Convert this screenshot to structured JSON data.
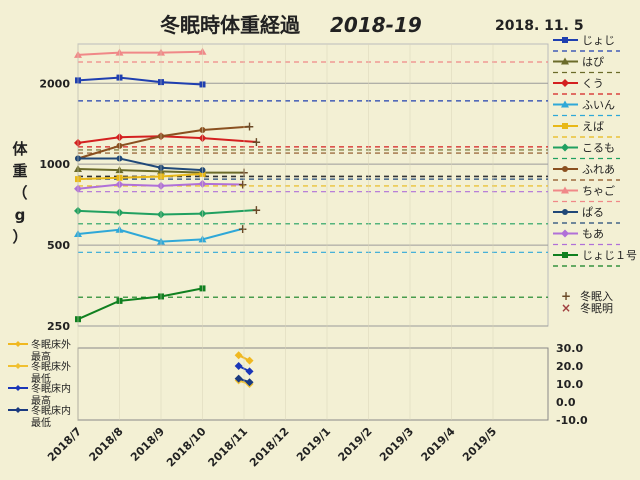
{
  "title": "冬眠時体重経過",
  "season": "2018-19",
  "date": "2018. 11. 5",
  "y_label_chars": [
    "体",
    "重",
    "（",
    "g",
    "）"
  ],
  "chart_data": [
    {
      "type": "line",
      "panel": "weight",
      "y_scale": "log",
      "ylim": [
        250,
        2800
      ],
      "y_ticks": [
        250,
        500,
        1000,
        2000
      ],
      "x_ticks": [
        "2018/7",
        "2018/8",
        "2018/9",
        "2018/10",
        "2018/11",
        "2018/12",
        "2019/1",
        "2019/2",
        "2019/3",
        "2019/4",
        "2019/5"
      ],
      "series": [
        {
          "name": "じょじ",
          "color": "#1f3fb0",
          "marker": "square",
          "x": [
            "2018/7/1",
            "2018/8/1",
            "2018/9/1",
            "2018/10/1"
          ],
          "values": [
            2050,
            2100,
            2020,
            1980
          ],
          "ref": 1720
        },
        {
          "name": "はぴ",
          "color": "#6b6b2a",
          "marker": "triangle",
          "x": [
            "2018/7/1",
            "2018/8/1",
            "2018/9/1",
            "2018/10/1",
            "2018/11/1"
          ],
          "values": [
            960,
            950,
            940,
            930,
            930
          ],
          "ref": 1130
        },
        {
          "name": "くう",
          "color": "#d42020",
          "marker": "diamond",
          "x": [
            "2018/7/1",
            "2018/8/1",
            "2018/9/1",
            "2018/10/1",
            "2018/11/10"
          ],
          "values": [
            1200,
            1260,
            1270,
            1250,
            1210
          ],
          "ref": 1160
        },
        {
          "name": "ふいん",
          "color": "#2fa8d8",
          "marker": "triangle",
          "x": [
            "2018/7/1",
            "2018/8/1",
            "2018/9/1",
            "2018/10/1",
            "2018/10/31"
          ],
          "values": [
            550,
            570,
            515,
            525,
            575
          ],
          "ref": 470
        },
        {
          "name": "えば",
          "color": "#e8b818",
          "marker": "square",
          "x": [
            "2018/7/1",
            "2018/8/1",
            "2018/9/1",
            "2018/10/1"
          ],
          "values": [
            880,
            890,
            900,
            920
          ],
          "ref": 830
        },
        {
          "name": "こるも",
          "color": "#20a060",
          "marker": "diamond",
          "x": [
            "2018/7/1",
            "2018/8/1",
            "2018/9/1",
            "2018/10/1",
            "2018/11/10"
          ],
          "values": [
            670,
            660,
            650,
            655,
            675
          ],
          "ref": 600
        },
        {
          "name": "ふれあ",
          "color": "#8a5020",
          "marker": "circle",
          "x": [
            "2018/7/1",
            "2018/8/1",
            "2018/9/1",
            "2018/10/1",
            "2018/11/5"
          ],
          "values": [
            1050,
            1170,
            1270,
            1340,
            1380
          ],
          "ref": 1100
        },
        {
          "name": "ちゃご",
          "color": "#f08888",
          "marker": "triangle",
          "x": [
            "2018/7/1",
            "2018/8/1",
            "2018/9/1",
            "2018/10/1"
          ],
          "values": [
            2550,
            2600,
            2600,
            2620
          ],
          "ref": 2400
        },
        {
          "name": "ぱる",
          "color": "#204878",
          "marker": "circle",
          "x": [
            "2018/7/1",
            "2018/8/1",
            "2018/9/1",
            "2018/10/1"
          ],
          "values": [
            1050,
            1050,
            970,
            950
          ],
          "ref": 880
        },
        {
          "name": "もあ",
          "color": "#b070d8",
          "marker": "diamond",
          "x": [
            "2018/7/1",
            "2018/8/1",
            "2018/9/1",
            "2018/10/1",
            "2018/10/31"
          ],
          "values": [
            810,
            840,
            830,
            845,
            840
          ],
          "ref": 790
        },
        {
          "name": "じょじ１号",
          "color": "#108020",
          "marker": "square",
          "x": [
            "2018/7/1",
            "2018/8/1",
            "2018/9/1",
            "2018/10/1"
          ],
          "values": [
            265,
            310,
            322,
            345
          ],
          "ref": 320
        }
      ],
      "legend_markers": [
        {
          "label": "冬眠入",
          "symbol": "+",
          "color": "#6a4a28"
        },
        {
          "label": "冬眠明",
          "symbol": "×",
          "color": "#a04040"
        }
      ]
    },
    {
      "type": "line",
      "panel": "temperature",
      "ylim": [
        -10,
        30
      ],
      "y_ticks": [
        "30.0",
        "20.0",
        "10.0",
        "0.0",
        "-10.0"
      ],
      "series": [
        {
          "name": "冬眠床外最高",
          "color": "#f0b820",
          "x": [
            "2018/10/28",
            "2018/11/5"
          ],
          "values": [
            26,
            23
          ]
        },
        {
          "name": "冬眠床外最低",
          "color": "#f0c030",
          "x": [
            "2018/10/28",
            "2018/11/5"
          ],
          "values": [
            12,
            10
          ]
        },
        {
          "name": "冬眠床内最高",
          "color": "#1a36b8",
          "x": [
            "2018/10/28",
            "2018/11/5"
          ],
          "values": [
            20,
            17
          ]
        },
        {
          "name": "冬眠床内最低",
          "color": "#1a3a80",
          "x": [
            "2018/10/28",
            "2018/11/5"
          ],
          "values": [
            13,
            11
          ]
        }
      ],
      "legend_lines": [
        [
          "冬眠床外",
          "最高"
        ],
        [
          "冬眠床外",
          "最低"
        ],
        [
          "冬眠床内",
          "最高"
        ],
        [
          "冬眠床内",
          "最低"
        ]
      ]
    }
  ]
}
